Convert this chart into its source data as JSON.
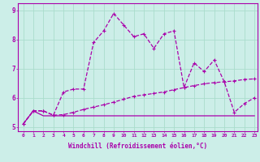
{
  "xlabel": "Windchill (Refroidissement éolien,°C)",
  "background_color": "#cceee8",
  "grid_color": "#aaddcc",
  "line_color": "#aa00aa",
  "xlim": [
    -0.5,
    23.3
  ],
  "ylim": [
    4.85,
    9.25
  ],
  "yticks": [
    5,
    6,
    7,
    8,
    9
  ],
  "xticks": [
    0,
    1,
    2,
    3,
    4,
    5,
    6,
    7,
    8,
    9,
    10,
    11,
    12,
    13,
    14,
    15,
    16,
    17,
    18,
    19,
    20,
    21,
    22,
    23
  ],
  "x": [
    0,
    1,
    2,
    3,
    4,
    5,
    6,
    7,
    8,
    9,
    10,
    11,
    12,
    13,
    14,
    15,
    16,
    17,
    18,
    19,
    20,
    21,
    22,
    23
  ],
  "line1": [
    5.1,
    5.55,
    5.55,
    5.4,
    6.2,
    6.3,
    6.3,
    7.9,
    8.3,
    8.9,
    8.5,
    8.1,
    8.2,
    7.7,
    8.2,
    8.3,
    6.35,
    7.2,
    6.9,
    7.3,
    6.55,
    5.5,
    5.8,
    6.0
  ],
  "line2": [
    5.1,
    5.55,
    5.55,
    5.4,
    5.42,
    5.5,
    5.6,
    5.68,
    5.76,
    5.85,
    5.95,
    6.05,
    6.1,
    6.15,
    6.2,
    6.28,
    6.35,
    6.42,
    6.48,
    6.52,
    6.55,
    6.58,
    6.63,
    6.65
  ],
  "line3": [
    5.1,
    5.55,
    5.38,
    5.38,
    5.38,
    5.38,
    5.38,
    5.38,
    5.38,
    5.38,
    5.38,
    5.38,
    5.38,
    5.38,
    5.38,
    5.38,
    5.38,
    5.38,
    5.38,
    5.38,
    5.38,
    5.38,
    5.38,
    5.38
  ]
}
